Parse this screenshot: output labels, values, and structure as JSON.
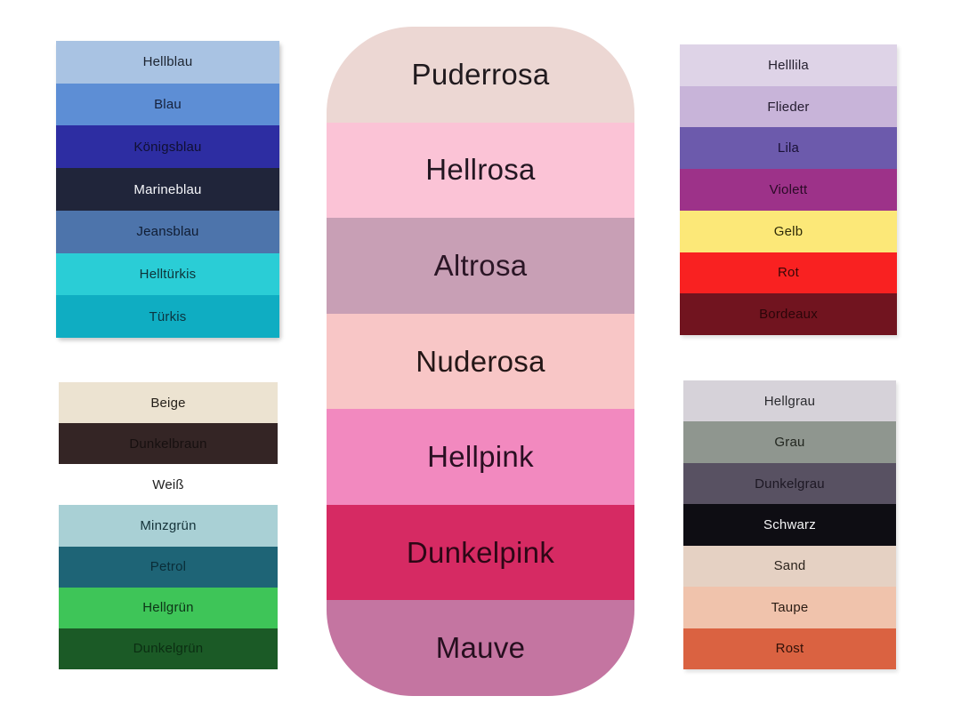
{
  "title": "Fabric color swatch chart (German color names)",
  "background_color": "#ffffff",
  "panels": {
    "left_top": {
      "name": "blue-tones-panel",
      "swatches": [
        {
          "label": "Hellblau",
          "bg": "#a9c3e3",
          "text": "#1c2430"
        },
        {
          "label": "Blau",
          "bg": "#5d8ed5",
          "text": "#16223c"
        },
        {
          "label": "Königsblau",
          "bg": "#2d2da2",
          "text": "#101033"
        },
        {
          "label": "Marineblau",
          "bg": "#20253a",
          "text": "#f5f6fa"
        },
        {
          "label": "Jeansblau",
          "bg": "#4d74ab",
          "text": "#101d33"
        },
        {
          "label": "Helltürkis",
          "bg": "#2acdd6",
          "text": "#0d3338"
        },
        {
          "label": "Türkis",
          "bg": "#0fadc2",
          "text": "#0c3440"
        }
      ]
    },
    "center": {
      "name": "rose-tones-panel",
      "swatches": [
        {
          "label": "Puderrosa",
          "bg": "#ecd7d3",
          "text": "#201a1e"
        },
        {
          "label": "Hellrosa",
          "bg": "#fbc3d6",
          "text": "#231722"
        },
        {
          "label": "Altrosa",
          "bg": "#c89fb5",
          "text": "#2b1626"
        },
        {
          "label": "Nuderosa",
          "bg": "#f8c6c6",
          "text": "#241717"
        },
        {
          "label": "Hellpink",
          "bg": "#f289bf",
          "text": "#2a0f22"
        },
        {
          "label": "Dunkelpink",
          "bg": "#d62a63",
          "text": "#2d0716"
        },
        {
          "label": "Mauve",
          "bg": "#c475a1",
          "text": "#260f1f"
        }
      ]
    },
    "right_top": {
      "name": "purple-red-yellow-panel",
      "swatches": [
        {
          "label": "Helllila",
          "bg": "#ded3e7",
          "text": "#241f2e"
        },
        {
          "label": "Flieder",
          "bg": "#c8b4d9",
          "text": "#241c30"
        },
        {
          "label": "Lila",
          "bg": "#6c5aac",
          "text": "#191136"
        },
        {
          "label": "Violett",
          "bg": "#9d3289",
          "text": "#2a0a26"
        },
        {
          "label": "Gelb",
          "bg": "#fce878",
          "text": "#2e2a08"
        },
        {
          "label": "Rot",
          "bg": "#f92121",
          "text": "#380707"
        },
        {
          "label": "Bordeaux",
          "bg": "#71141f",
          "text": "#2b0509"
        }
      ]
    },
    "left_bottom": {
      "name": "beige-green-panel",
      "swatches": [
        {
          "label": "Beige",
          "bg": "#ece3d1",
          "text": "#25201a"
        },
        {
          "label": "Dunkelbraun",
          "bg": "#342525",
          "text": "#171010"
        },
        {
          "label": "Weiß",
          "bg": "#ffffff",
          "text": "#1f1f1f"
        },
        {
          "label": "Minzgrün",
          "bg": "#a9d0d5",
          "text": "#15333a"
        },
        {
          "label": "Petrol",
          "bg": "#1e6476",
          "text": "#0a2d38"
        },
        {
          "label": "Hellgrün",
          "bg": "#3ec558",
          "text": "#0d3317"
        },
        {
          "label": "Dunkelgrün",
          "bg": "#1b5a26",
          "text": "#0b2e12"
        }
      ]
    },
    "right_bottom": {
      "name": "grey-earth-panel",
      "swatches": [
        {
          "label": "Hellgrau",
          "bg": "#d6d2d9",
          "text": "#2a2a2e"
        },
        {
          "label": "Grau",
          "bg": "#8f968f",
          "text": "#22261f"
        },
        {
          "label": "Dunkelgrau",
          "bg": "#585162",
          "text": "#1d1824"
        },
        {
          "label": "Schwarz",
          "bg": "#0e0d13",
          "text": "#f4f4f6"
        },
        {
          "label": "Sand",
          "bg": "#e5d1c3",
          "text": "#2c241d"
        },
        {
          "label": "Taupe",
          "bg": "#f0c3ac",
          "text": "#2b1d14"
        },
        {
          "label": "Rost",
          "bg": "#da6241",
          "text": "#311108"
        }
      ]
    }
  }
}
